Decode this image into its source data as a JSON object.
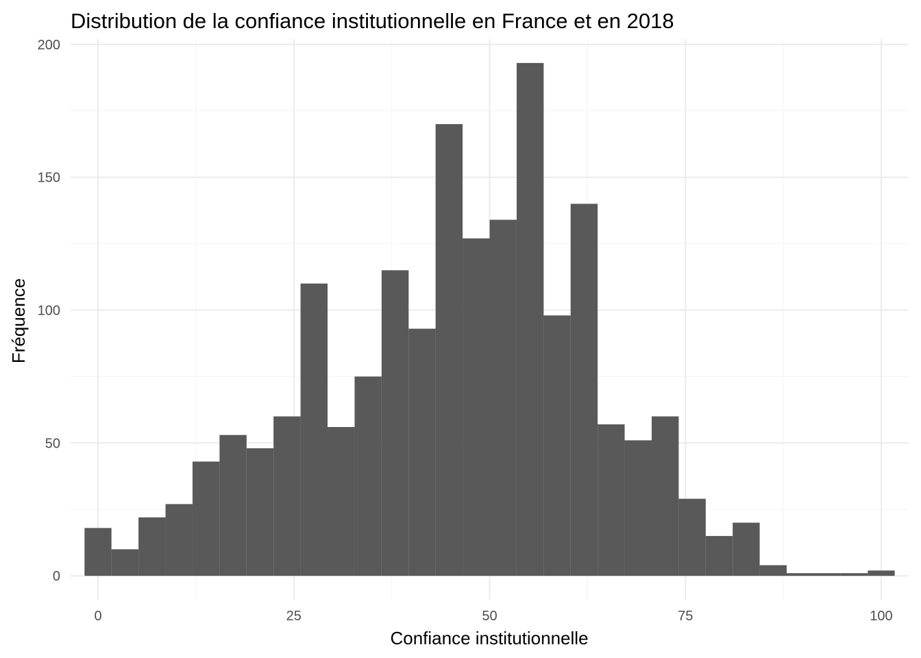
{
  "chart_data": {
    "type": "bar",
    "title": "Distribution de la confiance institutionnelle en France et en 2018",
    "xlabel": "Confiance institutionnelle",
    "ylabel": "Fréquence",
    "xlim": [
      -3.5,
      103.5
    ],
    "ylim": [
      -9,
      202
    ],
    "x_ticks": [
      0,
      25,
      50,
      75,
      100
    ],
    "y_ticks": [
      0,
      50,
      100,
      150,
      200
    ],
    "grid": true,
    "bar_color": "#595959",
    "bins": [
      {
        "x0": -1.72,
        "x1": 1.72,
        "count": 18
      },
      {
        "x0": 1.72,
        "x1": 5.17,
        "count": 10
      },
      {
        "x0": 5.17,
        "x1": 8.62,
        "count": 22
      },
      {
        "x0": 8.62,
        "x1": 12.07,
        "count": 27
      },
      {
        "x0": 12.07,
        "x1": 15.52,
        "count": 43
      },
      {
        "x0": 15.52,
        "x1": 18.97,
        "count": 53
      },
      {
        "x0": 18.97,
        "x1": 22.41,
        "count": 48
      },
      {
        "x0": 22.41,
        "x1": 25.86,
        "count": 60
      },
      {
        "x0": 25.86,
        "x1": 29.31,
        "count": 110
      },
      {
        "x0": 29.31,
        "x1": 32.76,
        "count": 56
      },
      {
        "x0": 32.76,
        "x1": 36.21,
        "count": 75
      },
      {
        "x0": 36.21,
        "x1": 39.66,
        "count": 115
      },
      {
        "x0": 39.66,
        "x1": 43.1,
        "count": 93
      },
      {
        "x0": 43.1,
        "x1": 46.55,
        "count": 170
      },
      {
        "x0": 46.55,
        "x1": 50.0,
        "count": 127
      },
      {
        "x0": 50.0,
        "x1": 53.45,
        "count": 134
      },
      {
        "x0": 53.45,
        "x1": 56.9,
        "count": 193
      },
      {
        "x0": 56.9,
        "x1": 60.34,
        "count": 98
      },
      {
        "x0": 60.34,
        "x1": 63.79,
        "count": 140
      },
      {
        "x0": 63.79,
        "x1": 67.24,
        "count": 57
      },
      {
        "x0": 67.24,
        "x1": 70.69,
        "count": 51
      },
      {
        "x0": 70.69,
        "x1": 74.14,
        "count": 60
      },
      {
        "x0": 74.14,
        "x1": 77.59,
        "count": 29
      },
      {
        "x0": 77.59,
        "x1": 81.03,
        "count": 15
      },
      {
        "x0": 81.03,
        "x1": 84.48,
        "count": 20
      },
      {
        "x0": 84.48,
        "x1": 87.93,
        "count": 4
      },
      {
        "x0": 87.93,
        "x1": 91.38,
        "count": 1
      },
      {
        "x0": 91.38,
        "x1": 94.83,
        "count": 1
      },
      {
        "x0": 94.83,
        "x1": 98.28,
        "count": 1
      },
      {
        "x0": 98.28,
        "x1": 101.72,
        "count": 2
      }
    ]
  }
}
